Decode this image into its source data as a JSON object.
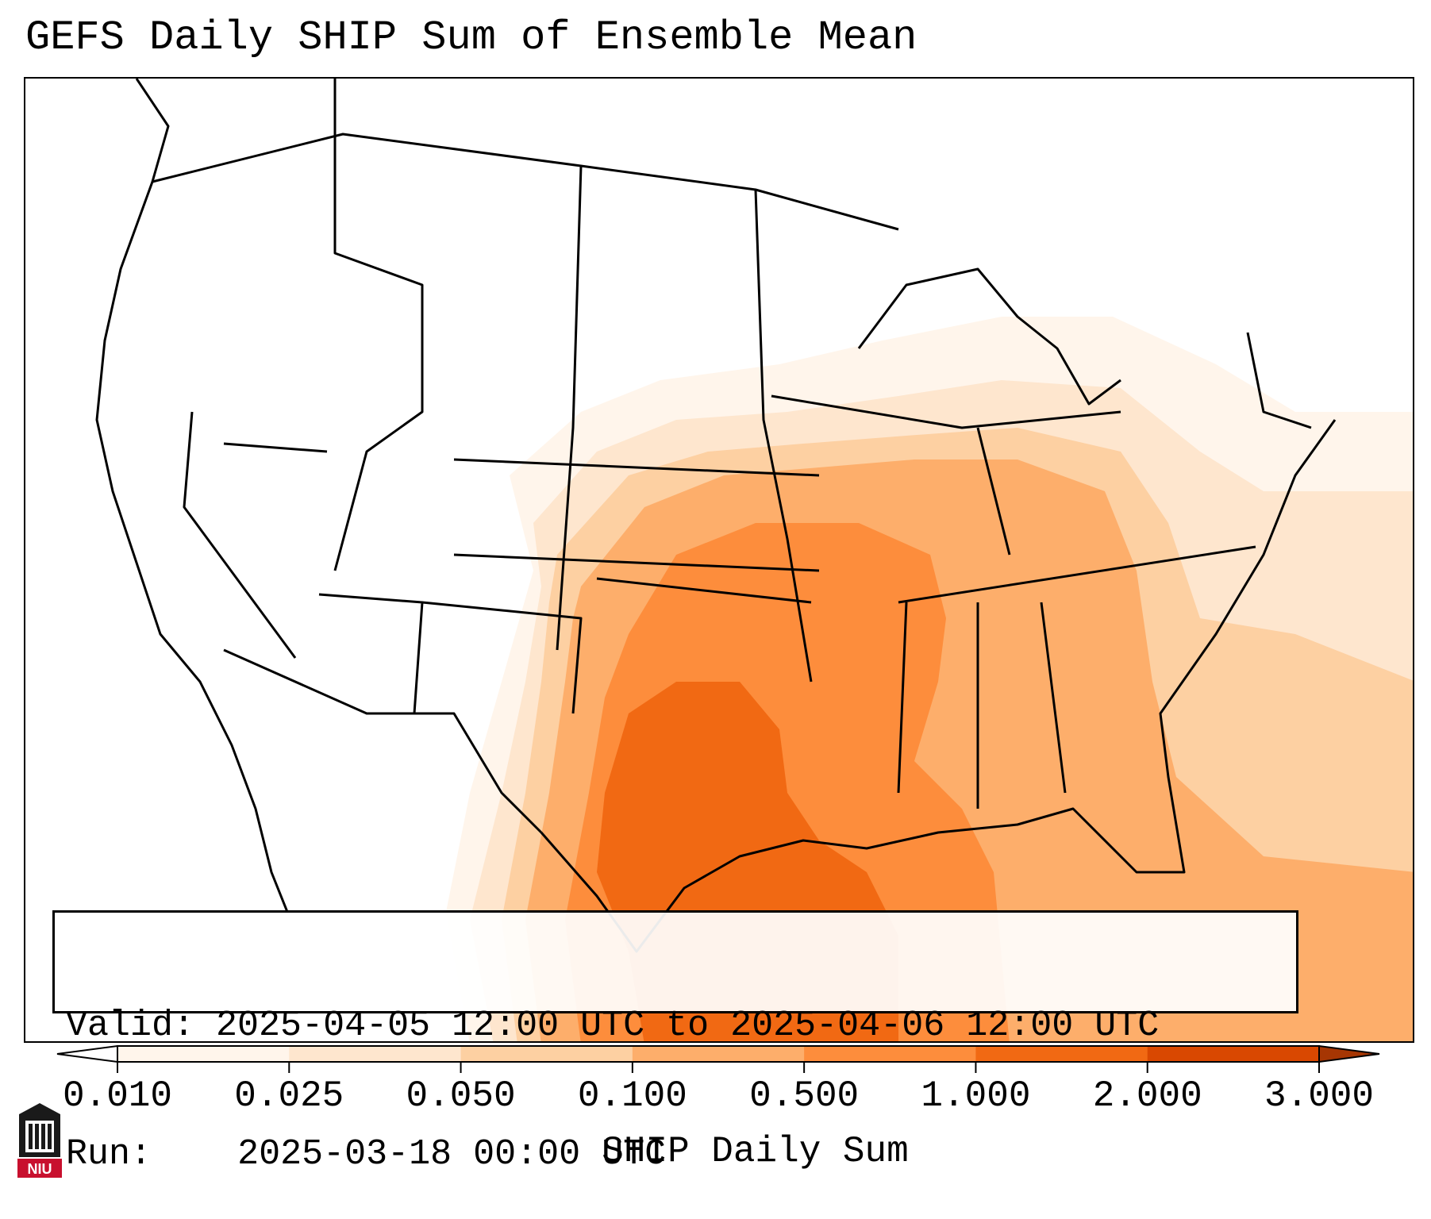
{
  "title": "GEFS Daily SHIP Sum of Ensemble Mean",
  "info": {
    "valid_label": "Valid:",
    "valid_value": "2025-04-05 12:00 UTC to 2025-04-06 12:00 UTC",
    "run_label": "Run:",
    "run_value": "2025-03-18 00:00 UTC"
  },
  "colorbar": {
    "label": "SHIP Daily Sum",
    "ticks": [
      "0.010",
      "0.025",
      "0.050",
      "0.100",
      "0.500",
      "1.000",
      "2.000",
      "3.000"
    ],
    "colors": [
      "#fff5eb",
      "#fee6ce",
      "#fdd0a2",
      "#fdae6b",
      "#fd8d3c",
      "#f16913",
      "#d94801",
      "#a63603"
    ],
    "extend": "both"
  },
  "logo": {
    "text": "NIU"
  }
}
